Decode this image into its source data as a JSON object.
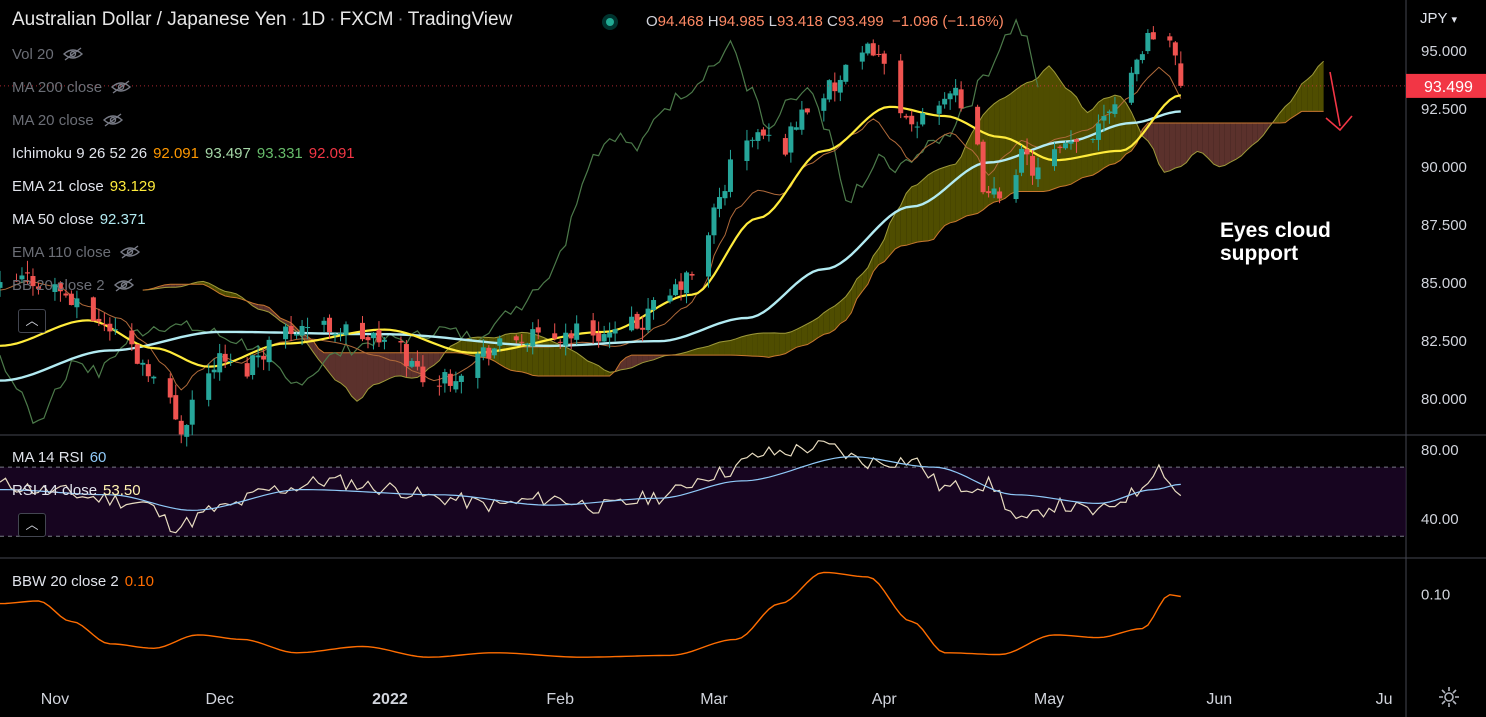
{
  "header": {
    "title": "Australian Dollar / Japanese Yen",
    "interval": "1D",
    "exchange": "FXCM",
    "source": "TradingView",
    "open_label": "O",
    "open": "94.468",
    "high_label": "H",
    "high": "94.985",
    "low_label": "L",
    "low": "93.418",
    "close_label": "C",
    "close": "93.499",
    "change": "−1.096 (−1.16%)"
  },
  "currency": "JPY",
  "indicators": [
    {
      "name": "Vol 20",
      "hidden": true
    },
    {
      "name": "MA 200 close",
      "hidden": true
    },
    {
      "name": "MA 20 close",
      "hidden": true
    },
    {
      "name": "Ichimoku 9 26 52 26",
      "values": [
        "92.091",
        "93.497",
        "93.331",
        "92.091"
      ],
      "colors": [
        "#ff9800",
        "#a5d6a7",
        "#66bb6a",
        "#f23645"
      ]
    },
    {
      "name": "EMA 21 close",
      "value": "93.129",
      "color": "#ffeb3b"
    },
    {
      "name": "MA 50 close",
      "value": "92.371",
      "color": "#b2ebf2"
    },
    {
      "name": "EMA 110 close",
      "hidden": true
    },
    {
      "name": "BB 20 close 2",
      "hidden": true
    }
  ],
  "rsi_legend": {
    "ma_name": "MA 14 RSI",
    "ma_value": "60",
    "rsi_name": "RSI 14 close",
    "rsi_value": "53.50"
  },
  "bbw_legend": {
    "name": "BBW 20 close 2",
    "value": "0.10"
  },
  "annotation": "Eyes cloud\nsupport",
  "colors": {
    "up": "#26a69a",
    "down": "#ef5350",
    "ema21": "#ffeb3b",
    "ma50": "#b2ebf2",
    "price_tag": "#f23645",
    "bbw": "#ff6d00",
    "rsi": "#e8dcc0",
    "rsi_ma": "#90caf9",
    "cloud_bull": "#5d5a00",
    "cloud_bear": "#6b3a34"
  },
  "chart_data": {
    "type": "candlestick",
    "title": "Australian Dollar / Japanese Yen · 1D · FXCM",
    "price_axis": {
      "ticks": [
        80.0,
        82.5,
        85.0,
        87.5,
        90.0,
        92.5,
        95.0
      ],
      "tick_labels": [
        "80.000",
        "82.500",
        "85.000",
        "87.500",
        "90.000",
        "92.500",
        "95.000"
      ],
      "range": [
        78.5,
        97.2
      ]
    },
    "last_price": 93.499,
    "last_price_label": "93.499",
    "time_axis": {
      "labels": [
        "Nov",
        "Dec",
        "2022",
        "Feb",
        "Mar",
        "Apr",
        "May",
        "Jun",
        "Ju"
      ],
      "label_days": [
        0,
        30,
        61,
        92,
        120,
        151,
        181,
        212,
        242
      ],
      "range": [
        -10,
        246
      ]
    },
    "candles_anchor_closes": [
      [
        -10,
        84.7
      ],
      [
        -5,
        85.2
      ],
      [
        0,
        84.8
      ],
      [
        6,
        83.6
      ],
      [
        12,
        82.9
      ],
      [
        16,
        81.6
      ],
      [
        20,
        80.2
      ],
      [
        23,
        78.8
      ],
      [
        26,
        80.4
      ],
      [
        30,
        81.7
      ],
      [
        34,
        81.1
      ],
      [
        37,
        82.0
      ],
      [
        41,
        82.9
      ],
      [
        45,
        83.2
      ],
      [
        50,
        83.1
      ],
      [
        54,
        82.9
      ],
      [
        58,
        82.6
      ],
      [
        62,
        82.3
      ],
      [
        66,
        81.3
      ],
      [
        69,
        80.6
      ],
      [
        72,
        81.0
      ],
      [
        76,
        81.8
      ],
      [
        80,
        82.2
      ],
      [
        85,
        82.6
      ],
      [
        90,
        82.6
      ],
      [
        96,
        83.0
      ],
      [
        102,
        82.7
      ],
      [
        106,
        83.2
      ],
      [
        110,
        84.0
      ],
      [
        115,
        85.1
      ],
      [
        118,
        86.2
      ],
      [
        121,
        88.7
      ],
      [
        124,
        90.6
      ],
      [
        128,
        91.4
      ],
      [
        132,
        90.8
      ],
      [
        137,
        92.6
      ],
      [
        141,
        93.3
      ],
      [
        146,
        94.4
      ],
      [
        149,
        95.2
      ],
      [
        153,
        93.2
      ],
      [
        156,
        91.4
      ],
      [
        159,
        92.6
      ],
      [
        163,
        93.3
      ],
      [
        167,
        91.3
      ],
      [
        170,
        88.6
      ],
      [
        173,
        89.1
      ],
      [
        176,
        90.4
      ],
      [
        179,
        89.8
      ],
      [
        183,
        90.6
      ],
      [
        188,
        91.3
      ],
      [
        192,
        92.7
      ],
      [
        196,
        94.2
      ],
      [
        199,
        95.6
      ],
      [
        201,
        96.2
      ],
      [
        203,
        95.4
      ],
      [
        205,
        93.5
      ]
    ],
    "ema21_anchors": [
      [
        -10,
        82.3
      ],
      [
        6,
        83.4
      ],
      [
        18,
        82.2
      ],
      [
        28,
        81.4
      ],
      [
        42,
        82.4
      ],
      [
        60,
        83.0
      ],
      [
        76,
        82.0
      ],
      [
        100,
        82.9
      ],
      [
        116,
        84.5
      ],
      [
        128,
        87.8
      ],
      [
        140,
        90.7
      ],
      [
        152,
        92.6
      ],
      [
        162,
        92.2
      ],
      [
        172,
        91.3
      ],
      [
        182,
        90.3
      ],
      [
        194,
        90.7
      ],
      [
        205,
        93.1
      ]
    ],
    "ma50_anchors": [
      [
        -10,
        80.8
      ],
      [
        10,
        82.1
      ],
      [
        30,
        82.9
      ],
      [
        60,
        82.8
      ],
      [
        90,
        82.3
      ],
      [
        110,
        82.5
      ],
      [
        126,
        83.5
      ],
      [
        140,
        85.6
      ],
      [
        156,
        88.3
      ],
      [
        170,
        90.2
      ],
      [
        184,
        91.1
      ],
      [
        196,
        91.9
      ],
      [
        205,
        92.4
      ]
    ],
    "rsi": {
      "levels": [
        70,
        30
      ],
      "tick_labels": [
        "80.00",
        "40.00"
      ],
      "ticks": [
        80,
        40
      ],
      "range": [
        18,
        88
      ],
      "rsi_anchors": [
        [
          -10,
          60
        ],
        [
          0,
          56
        ],
        [
          8,
          52
        ],
        [
          16,
          49
        ],
        [
          22,
          36
        ],
        [
          30,
          46
        ],
        [
          40,
          57
        ],
        [
          50,
          62
        ],
        [
          60,
          58
        ],
        [
          70,
          52
        ],
        [
          80,
          48
        ],
        [
          90,
          52
        ],
        [
          100,
          47
        ],
        [
          110,
          53
        ],
        [
          120,
          66
        ],
        [
          130,
          78
        ],
        [
          140,
          82
        ],
        [
          148,
          73
        ],
        [
          156,
          74
        ],
        [
          162,
          58
        ],
        [
          170,
          60
        ],
        [
          176,
          38
        ],
        [
          182,
          48
        ],
        [
          190,
          44
        ],
        [
          196,
          54
        ],
        [
          201,
          70
        ],
        [
          205,
          53.5
        ]
      ],
      "ma_anchors": [
        [
          -10,
          57
        ],
        [
          10,
          54
        ],
        [
          25,
          45
        ],
        [
          45,
          57
        ],
        [
          70,
          54
        ],
        [
          90,
          48
        ],
        [
          110,
          52
        ],
        [
          125,
          62
        ],
        [
          145,
          76
        ],
        [
          160,
          70
        ],
        [
          175,
          54
        ],
        [
          190,
          49
        ],
        [
          200,
          57
        ],
        [
          205,
          60
        ]
      ]
    },
    "bbw": {
      "tick_labels": [
        "0.10"
      ],
      "ticks": [
        0.1
      ],
      "range": [
        0.0,
        0.14
      ],
      "anchors": [
        [
          -10,
          0.09
        ],
        [
          -3,
          0.093
        ],
        [
          3,
          0.07
        ],
        [
          10,
          0.045
        ],
        [
          18,
          0.04
        ],
        [
          26,
          0.055
        ],
        [
          34,
          0.05
        ],
        [
          44,
          0.035
        ],
        [
          56,
          0.042
        ],
        [
          68,
          0.03
        ],
        [
          80,
          0.035
        ],
        [
          96,
          0.03
        ],
        [
          112,
          0.032
        ],
        [
          124,
          0.05
        ],
        [
          132,
          0.09
        ],
        [
          140,
          0.125
        ],
        [
          148,
          0.12
        ],
        [
          156,
          0.07
        ],
        [
          162,
          0.035
        ],
        [
          172,
          0.033
        ],
        [
          182,
          0.055
        ],
        [
          190,
          0.052
        ],
        [
          198,
          0.062
        ],
        [
          203,
          0.1
        ],
        [
          205,
          0.098
        ]
      ]
    }
  }
}
